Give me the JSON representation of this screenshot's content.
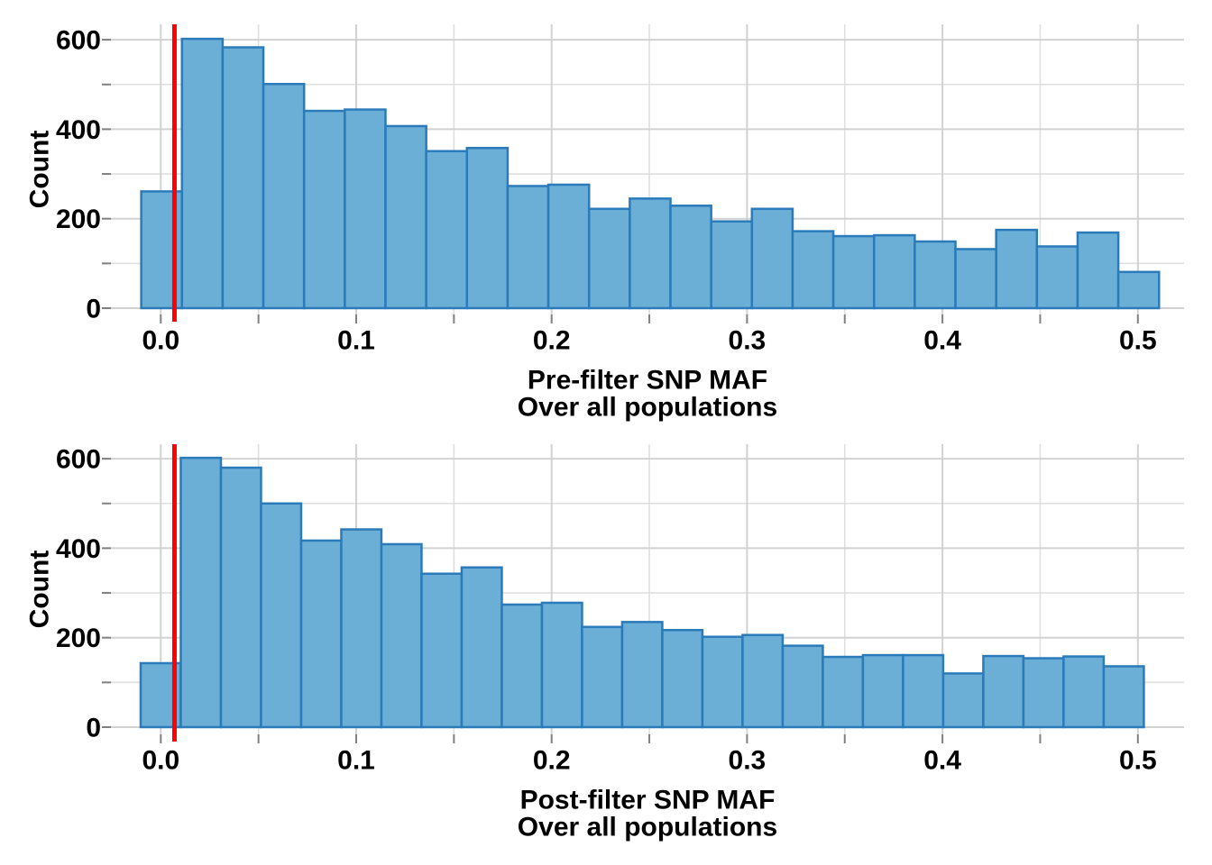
{
  "figure": {
    "background": "#ffffff",
    "bar_fill": "#6baed6",
    "bar_stroke": "#2b7bba",
    "threshold_line_color": "#ff0000",
    "grid_major_color": "#d2d2d2",
    "grid_minor_color": "#dfdfdf",
    "tick_color": "#808080",
    "text_color": "#000000"
  },
  "chart_data": [
    {
      "type": "bar",
      "name": "pre-filter-maf-histogram",
      "xlabel_line1": "Pre-filter SNP MAF",
      "xlabel_line2": "Over all populations",
      "ylabel": "Count",
      "bin_start": -0.01,
      "bin_width": 0.020833,
      "counts": [
        261,
        602,
        583,
        501,
        441,
        444,
        407,
        351,
        358,
        273,
        276,
        222,
        245,
        229,
        194,
        222,
        172,
        161,
        163,
        149,
        132,
        175,
        138,
        169,
        81
      ],
      "threshold_x": 0.007,
      "xlim": [
        -0.0255,
        0.5236
      ],
      "ylim": [
        0,
        632
      ],
      "x_major_ticks": [
        0,
        0.1,
        0.2,
        0.3,
        0.4,
        0.5
      ],
      "x_tick_labels": [
        "0.0",
        "0.1",
        "0.2",
        "0.3",
        "0.4",
        "0.5"
      ],
      "x_minor_ticks": [
        0.05,
        0.15,
        0.25,
        0.35,
        0.45
      ],
      "y_major_ticks": [
        0,
        200,
        400,
        600
      ],
      "y_tick_labels": [
        "0",
        "200",
        "400",
        "600"
      ],
      "y_minor_ticks": [
        100,
        300,
        500
      ],
      "grid": true,
      "legend": "none"
    },
    {
      "type": "bar",
      "name": "post-filter-maf-histogram",
      "xlabel_line1": "Post-filter SNP MAF",
      "xlabel_line2": "Over all populations",
      "ylabel": "Count",
      "bin_start": -0.0103,
      "bin_width": 0.020534,
      "counts": [
        143,
        602,
        580,
        500,
        417,
        442,
        409,
        343,
        357,
        274,
        278,
        224,
        235,
        217,
        202,
        206,
        182,
        157,
        161,
        161,
        120,
        159,
        154,
        158,
        136
      ],
      "threshold_x": 0.007,
      "xlim": [
        -0.0255,
        0.5236
      ],
      "ylim": [
        0,
        632
      ],
      "x_major_ticks": [
        0,
        0.1,
        0.2,
        0.3,
        0.4,
        0.5
      ],
      "x_tick_labels": [
        "0.0",
        "0.1",
        "0.2",
        "0.3",
        "0.4",
        "0.5"
      ],
      "x_minor_ticks": [
        0.05,
        0.15,
        0.25,
        0.35,
        0.45
      ],
      "y_major_ticks": [
        0,
        200,
        400,
        600
      ],
      "y_tick_labels": [
        "0",
        "200",
        "400",
        "600"
      ],
      "y_minor_ticks": [
        100,
        300,
        500
      ],
      "grid": true,
      "legend": "none"
    }
  ]
}
